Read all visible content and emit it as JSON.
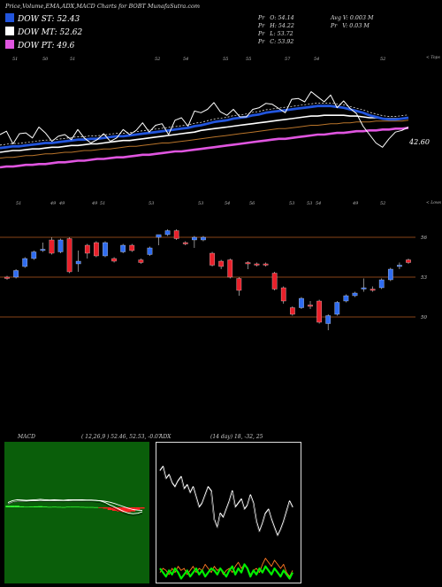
{
  "header": {
    "title": "Price,Volume,EMA,ADX,MACD Charts for BOBT MunafaSutra.com"
  },
  "legend": [
    {
      "label": "DOW ST: 52.43",
      "color": "#2255dd"
    },
    {
      "label": "DOW MT: 52.62",
      "color": "#ffffff"
    },
    {
      "label": "DOW PT: 49.6",
      "color": "#e055e0"
    }
  ],
  "quote": {
    "pr1": "Pr",
    "open": "O: 54.14",
    "pr2": "Pr",
    "high": "H: 54.22",
    "pr3": "Pr",
    "low": "L: 53.72",
    "pr4": "Pr",
    "close": "C: 53.92",
    "avgv": "Avg V: 0.003 M",
    "prv_label": "Pr",
    "prv": "V: 0.03 M"
  },
  "axis_top": {
    "right_label": "< Tops",
    "labels": [
      "51",
      "50",
      "51",
      "52",
      "54",
      "55",
      "55",
      "57",
      "54",
      "52"
    ]
  },
  "axis_bottom": {
    "right_label": "< Lows",
    "labels": [
      "51",
      "49",
      "49",
      "49",
      "51",
      "53",
      "53",
      "54",
      "56",
      "53",
      "53",
      "54",
      "49",
      "52"
    ]
  },
  "price_label": "42.60",
  "chart_data": [
    {
      "type": "line",
      "title": "",
      "series": [
        {
          "name": "",
          "color": "#ffffff",
          "values": [
            53.0,
            53.4,
            51.9,
            53.1,
            53.2,
            52.6,
            53.9,
            53.2,
            52.2,
            52.8,
            53.0,
            52.4,
            53.6,
            52.6,
            52.0,
            52.4,
            53.1,
            52.2,
            52.6,
            53.6,
            53.0,
            53.5,
            54.4,
            53.3,
            54.1,
            54.3,
            53.0,
            54.7,
            55.0,
            54.0,
            55.8,
            55.6,
            56.0,
            56.8,
            55.7,
            55.3,
            56.0,
            55.1,
            55.1,
            56.0,
            56.2,
            56.7,
            56.6,
            56.1,
            55.6,
            57.2,
            57.3,
            56.9,
            58.1,
            57.5,
            56.9,
            57.7,
            56.2,
            57.0,
            56.1,
            55.5,
            54.0,
            53.0,
            52.0,
            51.5,
            52.5,
            53.3,
            53.5,
            53.9
          ]
        },
        {
          "name": "",
          "color": "#2255dd",
          "values": [
            51.4,
            51.5,
            51.6,
            51.6,
            51.7,
            51.8,
            51.9,
            52.0,
            52.0,
            52.1,
            52.2,
            52.3,
            52.4,
            52.4,
            52.5,
            52.5,
            52.6,
            52.7,
            52.8,
            52.8,
            52.9,
            53.0,
            53.1,
            53.2,
            53.3,
            53.4,
            53.5,
            53.6,
            53.7,
            53.8,
            54.0,
            54.1,
            54.3,
            54.5,
            54.6,
            54.7,
            54.9,
            55.0,
            55.1,
            55.3,
            55.4,
            55.6,
            55.7,
            55.8,
            55.9,
            56.0,
            56.1,
            56.2,
            56.3,
            56.4,
            56.4,
            56.4,
            56.3,
            56.2,
            56.0,
            55.8,
            55.6,
            55.3,
            55.1,
            54.9,
            54.8,
            54.8,
            54.9,
            55.0
          ]
        },
        {
          "name": "",
          "color": "#ffffff",
          "values": [
            50.9,
            51.0,
            51.1,
            51.1,
            51.2,
            51.3,
            51.3,
            51.4,
            51.5,
            51.5,
            51.6,
            51.7,
            51.7,
            51.8,
            51.9,
            51.9,
            52.0,
            52.1,
            52.2,
            52.3,
            52.3,
            52.4,
            52.5,
            52.6,
            52.7,
            52.8,
            52.9,
            53.0,
            53.1,
            53.2,
            53.3,
            53.5,
            53.6,
            53.7,
            53.8,
            53.9,
            54.0,
            54.1,
            54.2,
            54.3,
            54.4,
            54.5,
            54.6,
            54.7,
            54.8,
            54.9,
            55.0,
            55.1,
            55.2,
            55.2,
            55.3,
            55.3,
            55.3,
            55.3,
            55.2,
            55.2,
            55.1,
            55.0,
            55.0,
            54.9,
            54.9,
            54.9,
            54.9,
            55.0
          ]
        },
        {
          "name": "",
          "color": "#b8742a",
          "values": [
            50.2,
            50.3,
            50.3,
            50.4,
            50.5,
            50.5,
            50.6,
            50.7,
            50.7,
            50.8,
            50.9,
            50.9,
            51.0,
            51.1,
            51.1,
            51.2,
            51.3,
            51.3,
            51.4,
            51.5,
            51.6,
            51.6,
            51.7,
            51.8,
            51.9,
            52.0,
            52.0,
            52.1,
            52.2,
            52.3,
            52.4,
            52.5,
            52.6,
            52.7,
            52.8,
            52.9,
            53.0,
            53.1,
            53.2,
            53.3,
            53.4,
            53.5,
            53.6,
            53.7,
            53.7,
            53.8,
            53.9,
            54.0,
            54.1,
            54.1,
            54.2,
            54.3,
            54.3,
            54.4,
            54.4,
            54.5,
            54.5,
            54.5,
            54.6,
            54.6,
            54.6,
            54.6,
            54.6,
            54.7
          ]
        },
        {
          "name": "",
          "color": "#e055e0",
          "values": [
            49.1,
            49.2,
            49.2,
            49.3,
            49.4,
            49.4,
            49.5,
            49.5,
            49.6,
            49.7,
            49.7,
            49.8,
            49.9,
            49.9,
            50.0,
            50.1,
            50.1,
            50.2,
            50.3,
            50.3,
            50.4,
            50.5,
            50.6,
            50.6,
            50.7,
            50.8,
            50.9,
            51.0,
            51.0,
            51.1,
            51.2,
            51.3,
            51.4,
            51.5,
            51.6,
            51.7,
            51.8,
            51.9,
            52.0,
            52.1,
            52.2,
            52.3,
            52.4,
            52.5,
            52.5,
            52.6,
            52.7,
            52.8,
            52.9,
            53.0,
            53.0,
            53.1,
            53.2,
            53.2,
            53.3,
            53.4,
            53.4,
            53.5,
            53.5,
            53.6,
            53.6,
            53.7,
            53.7,
            53.8
          ]
        }
      ]
    },
    {
      "type": "bar",
      "title": "",
      "hlines": [
        56,
        53,
        50
      ],
      "ytick_labels": [
        "56",
        "53",
        "50"
      ],
      "series": [
        {
          "name": "candles",
          "values": [
            {
              "o": 53.0,
              "c": 52.9,
              "h": 53.1,
              "l": 52.8,
              "u": false
            },
            {
              "o": 53.0,
              "c": 53.5,
              "h": 53.6,
              "l": 52.9,
              "u": true
            },
            {
              "o": 53.8,
              "c": 54.4,
              "h": 54.5,
              "l": 53.7,
              "u": true
            },
            {
              "o": 54.4,
              "c": 54.9,
              "h": 55.0,
              "l": 54.3,
              "u": true
            },
            {
              "o": 55.0,
              "c": 55.1,
              "h": 55.6,
              "l": 54.9,
              "u": true
            },
            {
              "o": 55.8,
              "c": 54.8,
              "h": 56.0,
              "l": 54.7,
              "u": false
            },
            {
              "o": 54.9,
              "c": 55.8,
              "h": 55.9,
              "l": 54.8,
              "u": true
            },
            {
              "o": 55.9,
              "c": 53.4,
              "h": 56.0,
              "l": 53.3,
              "u": false
            },
            {
              "o": 54.0,
              "c": 54.2,
              "h": 55.0,
              "l": 53.4,
              "u": true
            },
            {
              "o": 55.4,
              "c": 54.8,
              "h": 55.5,
              "l": 54.4,
              "u": false
            },
            {
              "o": 55.6,
              "c": 54.6,
              "h": 55.7,
              "l": 54.5,
              "u": false
            },
            {
              "o": 54.6,
              "c": 55.6,
              "h": 55.7,
              "l": 54.5,
              "u": true
            },
            {
              "o": 54.4,
              "c": 54.2,
              "h": 54.5,
              "l": 54.1,
              "u": false
            },
            {
              "o": 54.9,
              "c": 55.4,
              "h": 55.5,
              "l": 54.8,
              "u": true
            },
            {
              "o": 55.4,
              "c": 55.0,
              "h": 55.5,
              "l": 54.9,
              "u": false
            },
            {
              "o": 54.3,
              "c": 54.1,
              "h": 54.4,
              "l": 54.0,
              "u": false
            },
            {
              "o": 54.7,
              "c": 55.2,
              "h": 55.3,
              "l": 54.6,
              "u": true
            },
            {
              "o": 56.0,
              "c": 56.2,
              "h": 56.2,
              "l": 55.4,
              "u": true
            },
            {
              "o": 56.2,
              "c": 56.5,
              "h": 56.6,
              "l": 56.1,
              "u": true
            },
            {
              "o": 56.5,
              "c": 55.9,
              "h": 56.6,
              "l": 55.8,
              "u": false
            },
            {
              "o": 55.6,
              "c": 55.5,
              "h": 55.7,
              "l": 55.4,
              "u": false
            },
            {
              "o": 55.8,
              "c": 56.0,
              "h": 56.1,
              "l": 55.2,
              "u": true
            },
            {
              "o": 55.8,
              "c": 56.0,
              "h": 56.1,
              "l": 55.7,
              "u": true
            },
            {
              "o": 54.8,
              "c": 53.9,
              "h": 54.9,
              "l": 53.8,
              "u": false
            },
            {
              "o": 54.2,
              "c": 53.8,
              "h": 54.3,
              "l": 53.6,
              "u": false
            },
            {
              "o": 54.3,
              "c": 53.0,
              "h": 54.4,
              "l": 52.9,
              "u": false
            },
            {
              "o": 52.9,
              "c": 52.0,
              "h": 53.0,
              "l": 51.6,
              "u": false
            },
            {
              "o": 54.1,
              "c": 54.0,
              "h": 54.2,
              "l": 53.6,
              "u": false
            },
            {
              "o": 54.0,
              "c": 53.9,
              "h": 54.1,
              "l": 53.8,
              "u": false
            },
            {
              "o": 54.0,
              "c": 53.9,
              "h": 54.1,
              "l": 53.8,
              "u": false
            },
            {
              "o": 53.3,
              "c": 52.1,
              "h": 53.4,
              "l": 52.0,
              "u": false
            },
            {
              "o": 52.2,
              "c": 51.2,
              "h": 52.3,
              "l": 51.0,
              "u": false
            },
            {
              "o": 50.7,
              "c": 50.2,
              "h": 50.8,
              "l": 50.1,
              "u": false
            },
            {
              "o": 50.7,
              "c": 51.4,
              "h": 51.5,
              "l": 50.6,
              "u": true
            },
            {
              "o": 50.9,
              "c": 50.8,
              "h": 51.2,
              "l": 50.6,
              "u": false
            },
            {
              "o": 51.2,
              "c": 49.6,
              "h": 51.3,
              "l": 49.5,
              "u": false
            },
            {
              "o": 49.5,
              "c": 50.1,
              "h": 50.2,
              "l": 49.0,
              "u": true
            },
            {
              "o": 50.2,
              "c": 51.1,
              "h": 51.2,
              "l": 50.1,
              "u": true
            },
            {
              "o": 51.2,
              "c": 51.6,
              "h": 51.7,
              "l": 51.1,
              "u": true
            },
            {
              "o": 51.6,
              "c": 51.8,
              "h": 51.9,
              "l": 51.5,
              "u": true
            },
            {
              "o": 52.1,
              "c": 52.2,
              "h": 52.9,
              "l": 51.9,
              "u": true
            },
            {
              "o": 52.1,
              "c": 52.0,
              "h": 52.3,
              "l": 51.9,
              "u": false
            },
            {
              "o": 52.2,
              "c": 52.8,
              "h": 52.9,
              "l": 52.1,
              "u": true
            },
            {
              "o": 52.8,
              "c": 53.6,
              "h": 53.7,
              "l": 52.7,
              "u": true
            },
            {
              "o": 53.8,
              "c": 53.9,
              "h": 54.1,
              "l": 53.6,
              "u": true
            },
            {
              "o": 54.1,
              "c": 54.3,
              "h": 54.4,
              "l": 54.0,
              "u": false
            }
          ]
        }
      ]
    },
    {
      "type": "line",
      "title": "MACD",
      "params": "( 12,26,9 ) 52.46, 52.53, -0.07",
      "series": [
        {
          "name": "",
          "color": "#ffffff",
          "values": [
            0.3,
            0.42,
            0.48,
            0.46,
            0.44,
            0.46,
            0.48,
            0.5,
            0.48,
            0.46,
            0.47,
            0.46,
            0.45,
            0.47,
            0.48,
            0.48,
            0.47,
            0.46,
            0.46,
            0.44,
            0.4,
            0.3,
            0.15,
            0.02,
            -0.12,
            -0.26,
            -0.36,
            -0.4,
            -0.37,
            -0.28
          ]
        },
        {
          "name": "",
          "color": "#ffffff",
          "values": [
            0.2,
            0.32,
            0.38,
            0.4,
            0.4,
            0.41,
            0.42,
            0.43,
            0.43,
            0.43,
            0.43,
            0.43,
            0.43,
            0.43,
            0.44,
            0.44,
            0.44,
            0.44,
            0.44,
            0.43,
            0.42,
            0.38,
            0.32,
            0.24,
            0.14,
            0.04,
            -0.06,
            -0.14,
            -0.18,
            -0.2
          ]
        },
        {
          "name": "histogram",
          "values": [
            0.1,
            0.1,
            0.1,
            0.06,
            0.04,
            0.05,
            0.06,
            0.07,
            0.05,
            0.03,
            0.04,
            0.03,
            0.02,
            0.04,
            0.04,
            0.04,
            0.03,
            0.02,
            0.02,
            0.01,
            -0.02,
            -0.08,
            -0.17,
            -0.22,
            -0.26,
            -0.3,
            -0.3,
            -0.26,
            -0.19,
            -0.08
          ]
        }
      ]
    },
    {
      "type": "line",
      "title": "ADX",
      "params": "(14 day) 18, -32, 25",
      "series": [
        {
          "name": "",
          "color": "#ffffff",
          "values": [
            12,
            10,
            16,
            14,
            18,
            20,
            17,
            15,
            21,
            19,
            23,
            20,
            25,
            30,
            28,
            24,
            20,
            22,
            36,
            40,
            33,
            35,
            31,
            27,
            22,
            30,
            28,
            26,
            31,
            29,
            24,
            28,
            37,
            42,
            38,
            33,
            31,
            36,
            40,
            44,
            41,
            37,
            32,
            27,
            30
          ]
        },
        {
          "name": "",
          "color": "#00ee00",
          "values": [
            60,
            62,
            64,
            61,
            63,
            60,
            62,
            65,
            63,
            61,
            64,
            62,
            60,
            63,
            61,
            64,
            62,
            60,
            61,
            63,
            60,
            62,
            64,
            61,
            59,
            63,
            60,
            62,
            58,
            60,
            64,
            61,
            63,
            60,
            62,
            59,
            61,
            63,
            60,
            62,
            64,
            61,
            63,
            65,
            62
          ]
        },
        {
          "name": "",
          "color": "#ff7722",
          "values": [
            62,
            60,
            61,
            63,
            60,
            62,
            59,
            61,
            60,
            63,
            61,
            59,
            62,
            60,
            61,
            58,
            60,
            62,
            59,
            61,
            60,
            63,
            61,
            60,
            62,
            59,
            57,
            60,
            58,
            60,
            63,
            61,
            60,
            62,
            58,
            55,
            57,
            59,
            56,
            58,
            60,
            58,
            62,
            64,
            61
          ]
        }
      ]
    }
  ]
}
